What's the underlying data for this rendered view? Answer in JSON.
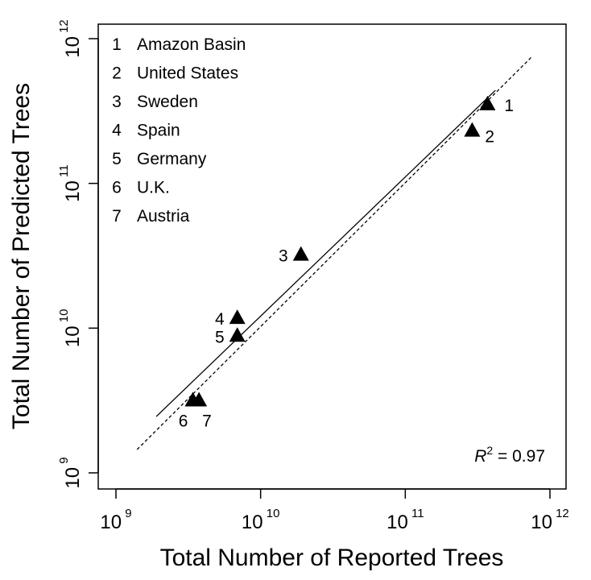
{
  "chart_data": {
    "type": "scatter",
    "xlabel": "Total Number of Reported Trees",
    "ylabel": "Total Number of Predicted Trees",
    "xscale": "log",
    "yscale": "log",
    "xlim": [
      1000000000.0,
      1000000000000.0
    ],
    "ylim": [
      1000000000.0,
      1000000000000.0
    ],
    "ticks": [
      {
        "value": 1000000000.0,
        "base": "10",
        "exp": "9"
      },
      {
        "value": 10000000000.0,
        "base": "10",
        "exp": "10"
      },
      {
        "value": 100000000000.0,
        "base": "10",
        "exp": "11"
      },
      {
        "value": 1000000000000.0,
        "base": "10",
        "exp": "12"
      }
    ],
    "points": [
      {
        "label": "1",
        "name": "Amazon Basin",
        "x": 370000000000.0,
        "y": 350000000000.0
      },
      {
        "label": "2",
        "name": "United States",
        "x": 290000000000.0,
        "y": 230000000000.0
      },
      {
        "label": "3",
        "name": "Sweden",
        "x": 19000000000.0,
        "y": 32000000000.0
      },
      {
        "label": "4",
        "name": "Spain",
        "x": 6900000000.0,
        "y": 11700000000.0
      },
      {
        "label": "5",
        "name": "Germany",
        "x": 6900000000.0,
        "y": 8800000000.0
      },
      {
        "label": "6",
        "name": "U.K.",
        "x": 3400000000.0,
        "y": 3150000000.0
      },
      {
        "label": "7",
        "name": "Austria",
        "x": 3750000000.0,
        "y": 3150000000.0
      }
    ],
    "legend": {
      "placement": "top-left",
      "entries": [
        "1 Amazon Basin",
        "2 United States",
        "3 Sweden",
        "4 Spain",
        "5 Germany",
        "6 U.K.",
        "7 Austria"
      ]
    },
    "fit_line": {
      "style": "solid",
      "x": [
        1900000000.0,
        420000000000.0
      ],
      "y": [
        2450000000.0,
        440000000000.0
      ]
    },
    "reference_line": {
      "style": "dashed",
      "x": [
        1400000000.0,
        750000000000.0
      ],
      "y": [
        1450000000.0,
        750000000000.0
      ]
    },
    "annotation": {
      "var": "R",
      "sup": "2",
      "rest": " = 0.97"
    },
    "grid": false,
    "marker": "filled-triangle",
    "color": "#000000"
  }
}
